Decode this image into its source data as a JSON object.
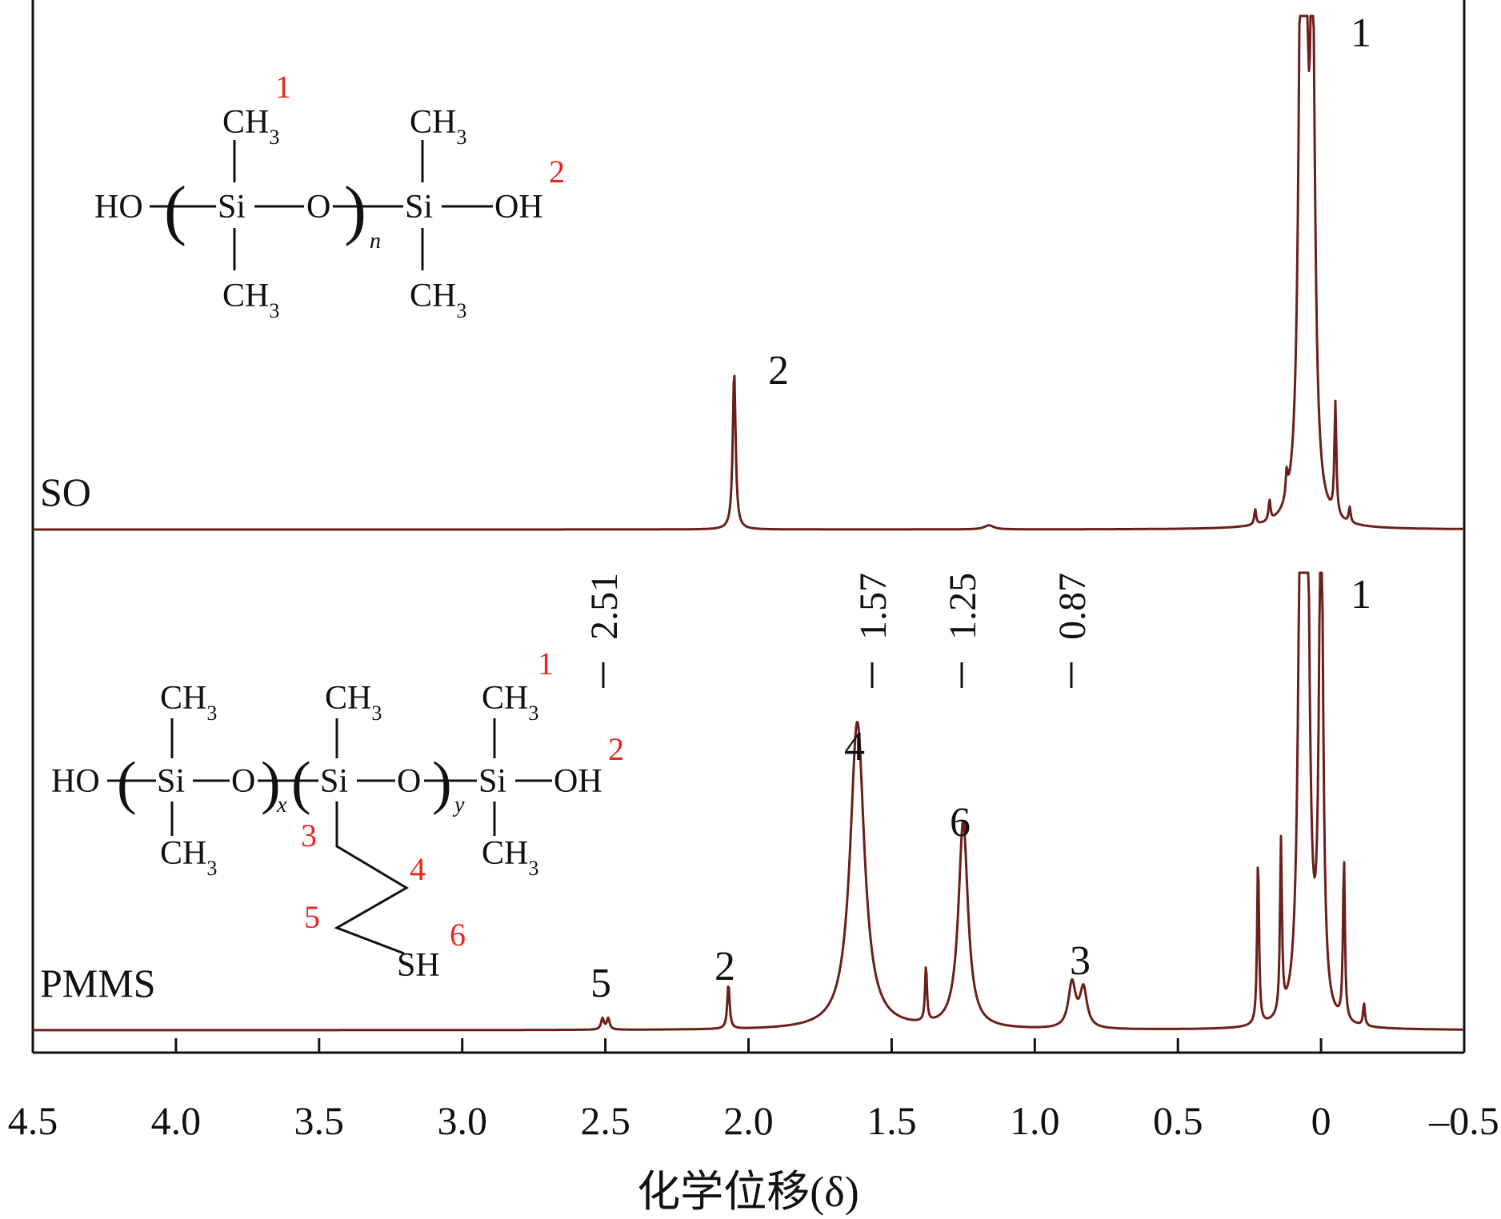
{
  "chart_data": {
    "type": "line",
    "title": "",
    "xlabel": "化学位移(δ)",
    "ylabel": "",
    "xlim": [
      4.5,
      -0.5
    ],
    "x_reversed": true,
    "x_ticks": [
      4.5,
      4.0,
      3.5,
      3.0,
      2.5,
      2.0,
      1.5,
      1.0,
      0.5,
      0,
      -0.5
    ],
    "x_tick_labels": [
      "4.5",
      "4.0",
      "3.5",
      "3.0",
      "2.5",
      "2.0",
      "1.5",
      "1.0",
      "0.5",
      "0",
      "–0.5"
    ],
    "line_color": "#6b1f1a",
    "series": [
      {
        "name": "SO",
        "peaks": [
          {
            "shift": 2.05,
            "height": 0.31,
            "width": 0.006
          },
          {
            "shift": 1.16,
            "height": 0.008,
            "width": 0.02
          },
          {
            "shift": 0.07,
            "height": 1.0,
            "width": 0.01
          },
          {
            "shift": 0.055,
            "height": 1.0,
            "width": 0.01
          },
          {
            "shift": 0.03,
            "height": 1.0,
            "width": 0.01
          },
          {
            "shift": 0.0,
            "height": 0.0,
            "width": 0.01
          },
          {
            "shift": 0.23,
            "height": 0.03,
            "width": 0.004
          },
          {
            "shift": 0.18,
            "height": 0.04,
            "width": 0.004
          },
          {
            "shift": 0.12,
            "height": 0.05,
            "width": 0.004
          },
          {
            "shift": -0.05,
            "height": 0.22,
            "width": 0.004
          },
          {
            "shift": -0.1,
            "height": 0.03,
            "width": 0.004
          }
        ],
        "peak_labels": [
          {
            "text": "2",
            "shift": 2.05
          },
          {
            "text": "1",
            "shift": -0.13
          }
        ]
      },
      {
        "name": "PMMS",
        "peaks": [
          {
            "shift": 2.51,
            "height": 0.02,
            "width": 0.006
          },
          {
            "shift": 2.49,
            "height": 0.02,
            "width": 0.006
          },
          {
            "shift": 2.07,
            "height": 0.08,
            "width": 0.005
          },
          {
            "shift": 1.62,
            "height": 0.55,
            "width": 0.03
          },
          {
            "shift": 1.38,
            "height": 0.1,
            "width": 0.004
          },
          {
            "shift": 1.25,
            "height": 0.37,
            "width": 0.02
          },
          {
            "shift": 0.87,
            "height": 0.08,
            "width": 0.015
          },
          {
            "shift": 0.83,
            "height": 0.07,
            "width": 0.015
          },
          {
            "shift": 0.07,
            "height": 1.0,
            "width": 0.01
          },
          {
            "shift": 0.05,
            "height": 1.0,
            "width": 0.01
          },
          {
            "shift": 0.0,
            "height": 1.0,
            "width": 0.008
          },
          {
            "shift": 0.22,
            "height": 0.3,
            "width": 0.004
          },
          {
            "shift": 0.14,
            "height": 0.31,
            "width": 0.004
          },
          {
            "shift": -0.08,
            "height": 0.29,
            "width": 0.004
          },
          {
            "shift": -0.15,
            "height": 0.04,
            "width": 0.004
          }
        ],
        "peak_labels": [
          {
            "text": "5",
            "shift": 2.51
          },
          {
            "text": "2",
            "shift": 2.07
          },
          {
            "text": "4",
            "shift": 1.62
          },
          {
            "text": "6",
            "shift": 1.25
          },
          {
            "text": "3",
            "shift": 0.84
          },
          {
            "text": "1",
            "shift": -0.13
          }
        ],
        "shift_annotations": [
          {
            "text": "2.51",
            "shift": 2.51
          },
          {
            "text": "1.57",
            "shift": 1.57
          },
          {
            "text": "1.25",
            "shift": 1.25
          },
          {
            "text": "0.87",
            "shift": 0.87
          }
        ]
      }
    ]
  },
  "structures": {
    "so": {
      "ho": "HO",
      "si": "Si",
      "o": "O",
      "oh": "OH",
      "ch": "CH",
      "sub3": "3",
      "n": "n",
      "num1": "1",
      "num2": "2"
    },
    "pmms": {
      "ho": "HO",
      "si": "Si",
      "o": "O",
      "oh": "OH",
      "ch": "CH",
      "sub3": "3",
      "x": "x",
      "y": "y",
      "sh": "SH",
      "num1": "1",
      "num2": "2",
      "num3": "3",
      "num4": "4",
      "num5": "5",
      "num6": "6"
    }
  }
}
